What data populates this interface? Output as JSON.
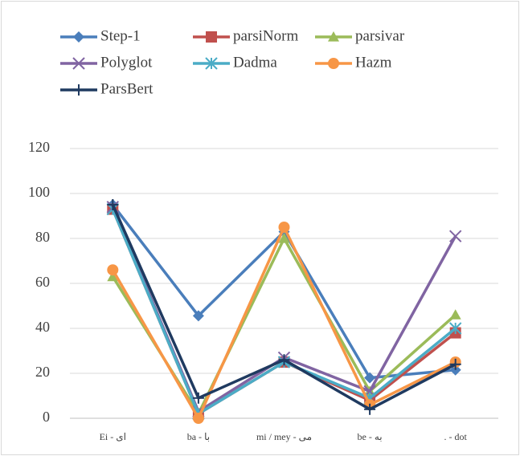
{
  "chart_data": {
    "type": "line",
    "categories": [
      "Ei - ای",
      "ba - با",
      "mi / mey - می",
      "be - به",
      ". - dot"
    ],
    "series": [
      {
        "name": "Step-1",
        "color": "#4a7ebb",
        "marker": "diamond",
        "values": [
          95,
          45.6,
          83,
          18,
          21.5
        ]
      },
      {
        "name": "parsiNorm",
        "color": "#c0504d",
        "marker": "square",
        "values": [
          93,
          2,
          25,
          8,
          38
        ]
      },
      {
        "name": "parsivar",
        "color": "#9bbb59",
        "marker": "triangle",
        "values": [
          63,
          2,
          80,
          12,
          46
        ]
      },
      {
        "name": "Polyglot",
        "color": "#8064a2",
        "marker": "x",
        "values": [
          94,
          3,
          27,
          12,
          81
        ]
      },
      {
        "name": "Dadma",
        "color": "#4bacc6",
        "marker": "asterisk",
        "values": [
          93,
          2,
          25,
          9,
          40
        ]
      },
      {
        "name": "Hazm",
        "color": "#f79646",
        "marker": "circle",
        "values": [
          66,
          0,
          85,
          6,
          25
        ]
      },
      {
        "name": "ParsBert",
        "color": "#1f3a60",
        "marker": "plus",
        "values": [
          95,
          9,
          26,
          4,
          24
        ]
      }
    ],
    "ylim": [
      0,
      120
    ],
    "yticks": [
      0,
      20,
      40,
      60,
      80,
      100,
      120
    ],
    "grid": true,
    "legend": "top"
  }
}
